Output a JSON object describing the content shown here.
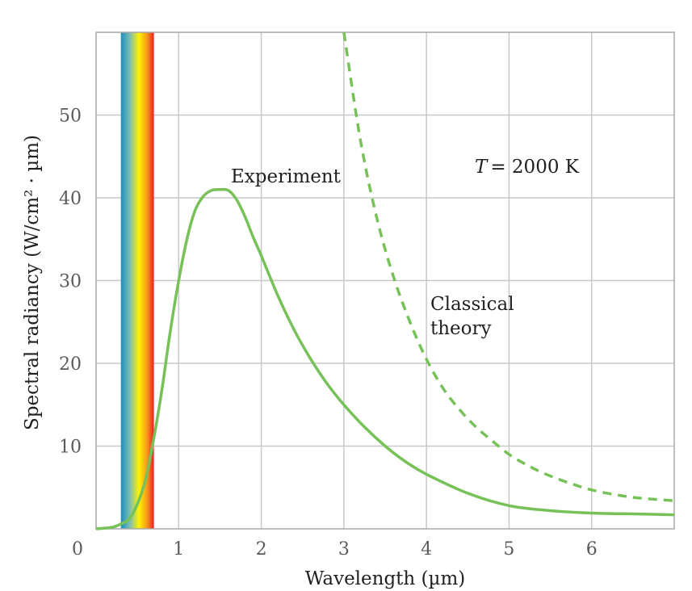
{
  "colors": {
    "curve": "#77c159",
    "grid": "#c8c8c8",
    "spectrum": [
      "#1a8fc2",
      "#7fbfb0",
      "#fff200",
      "#f7941d",
      "#ed1c24"
    ]
  },
  "chart_data": {
    "type": "line",
    "title": "",
    "xlabel": "Wavelength (µm)",
    "ylabel": "Spectral radiancy (W/cm² · µm)",
    "xlim": [
      0,
      7
    ],
    "ylim": [
      0,
      60
    ],
    "x_ticks": [
      0,
      1,
      2,
      3,
      4,
      5,
      6
    ],
    "y_ticks": [
      10,
      20,
      30,
      40,
      50
    ],
    "zero_label": "0",
    "grid": true,
    "visible_band": [
      0.3,
      0.7
    ],
    "series": [
      {
        "name": "Experiment",
        "style": "solid",
        "x": [
          0,
          0.2,
          0.3,
          0.4,
          0.5,
          0.6,
          0.7,
          0.8,
          0.9,
          1.0,
          1.1,
          1.2,
          1.3,
          1.4,
          1.5,
          1.6,
          1.7,
          1.8,
          1.9,
          2.0,
          2.2,
          2.4,
          2.6,
          2.8,
          3.0,
          3.25,
          3.5,
          3.75,
          4.0,
          4.5,
          5.0,
          5.5,
          6.0,
          6.5,
          7.0
        ],
        "y": [
          0,
          0.2,
          0.6,
          1.2,
          3.0,
          6.0,
          11.0,
          17.0,
          24.0,
          30.0,
          35.0,
          38.5,
          40.2,
          40.9,
          41.0,
          40.9,
          39.8,
          37.8,
          35.3,
          33.0,
          28.2,
          24.0,
          20.5,
          17.5,
          15.0,
          12.3,
          10.0,
          8.1,
          6.6,
          4.3,
          2.8,
          2.2,
          1.9,
          1.8,
          1.7
        ]
      },
      {
        "name": "Classical theory",
        "style": "dashed",
        "x": [
          3.0,
          3.2,
          3.4,
          3.6,
          3.8,
          4.0,
          4.2,
          4.4,
          4.6,
          4.8,
          5.0,
          5.2,
          5.4,
          5.6,
          5.8,
          6.0,
          6.3,
          6.6,
          7.0
        ],
        "y": [
          60.0,
          47.0,
          37.5,
          30.5,
          25.0,
          20.5,
          17.0,
          14.4,
          12.3,
          10.6,
          9.0,
          7.8,
          6.8,
          6.0,
          5.3,
          4.7,
          4.1,
          3.7,
          3.4
        ]
      }
    ],
    "annotations": {
      "experiment": "Experiment",
      "classical_line1": "Classical",
      "classical_line2": "theory",
      "temperature_symbol": "T",
      "temperature_value": "= 2000 K"
    }
  }
}
